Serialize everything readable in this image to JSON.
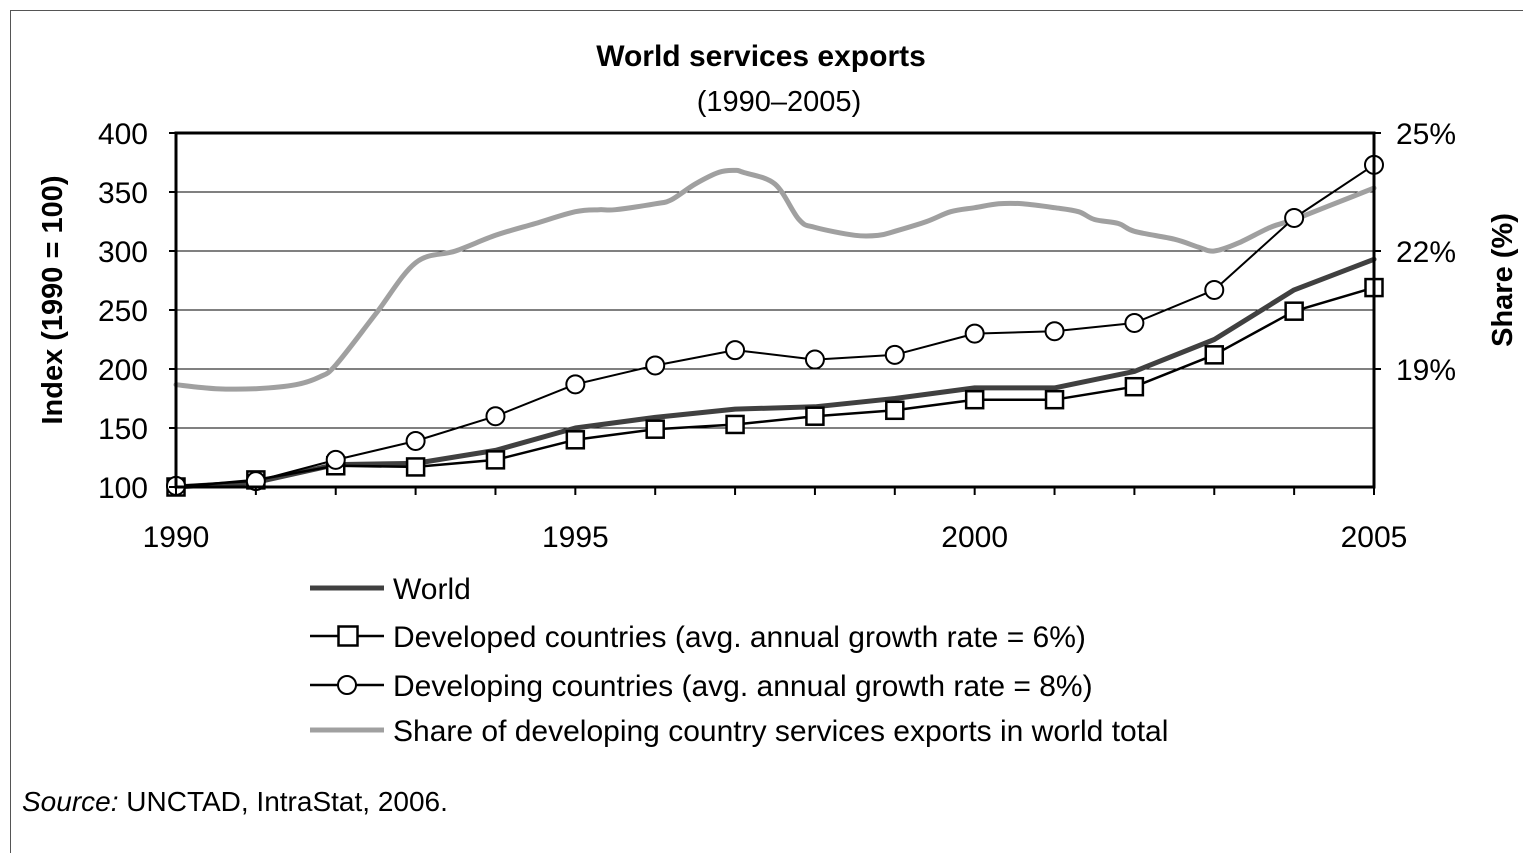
{
  "chart_data": {
    "type": "line",
    "title": "World services exports",
    "subtitle": "(1990–2005)",
    "ylabel": "Index (1990 = 100)",
    "y2label": "Share (%)",
    "xlim": [
      1990,
      2005
    ],
    "ylim": [
      100,
      400
    ],
    "y2lim": [
      16,
      25
    ],
    "x_ticks": [
      1990,
      1995,
      2000,
      2005
    ],
    "y_ticks": [
      100,
      150,
      200,
      250,
      300,
      350,
      400
    ],
    "y2_ticks": [
      {
        "value": 19,
        "label": "19%"
      },
      {
        "value": 22,
        "label": "22%"
      },
      {
        "value": 25,
        "label": "25%"
      }
    ],
    "grid": true,
    "legend_position": "bottom",
    "series": [
      {
        "name": "World",
        "axis": "left",
        "color": "#404040",
        "x": [
          1990,
          1991,
          1992,
          1993,
          1994,
          1995,
          1996,
          1997,
          1998,
          1999,
          2000,
          2001,
          2002,
          2003,
          2004,
          2005
        ],
        "values": [
          100,
          104,
          119,
          120,
          131,
          150,
          159,
          166,
          168,
          175,
          184,
          184,
          198,
          225,
          267,
          293
        ]
      },
      {
        "name": "Developed countries (avg. annual growth rate = 6%)",
        "axis": "left",
        "color": "#000000",
        "marker": "square",
        "x": [
          1990,
          1991,
          1992,
          1993,
          1994,
          1995,
          1996,
          1997,
          1998,
          1999,
          2000,
          2001,
          2002,
          2003,
          2004,
          2005
        ],
        "values": [
          100,
          106,
          118,
          117,
          123,
          140,
          149,
          153,
          160,
          165,
          174,
          174,
          185,
          212,
          249,
          269
        ]
      },
      {
        "name": "Developing countries (avg. annual growth rate = 8%)",
        "axis": "left",
        "color": "#000000",
        "marker": "circle",
        "x": [
          1990,
          1991,
          1992,
          1993,
          1994,
          1995,
          1996,
          1997,
          1998,
          1999,
          2000,
          2001,
          2002,
          2003,
          2004,
          2005
        ],
        "values": [
          101,
          105,
          123,
          139,
          160,
          187,
          203,
          216,
          208,
          212,
          230,
          232,
          239,
          267,
          328,
          373
        ]
      },
      {
        "name": "Share of developing country services exports in world total",
        "axis": "right",
        "color": "#a0a0a0",
        "x": [
          1990,
          1990.5,
          1991,
          1991.5,
          1991.8,
          1992,
          1992.5,
          1993,
          1993.5,
          1994,
          1994.5,
          1995,
          1995.3,
          1995.5,
          1996,
          1996.2,
          1996.5,
          1996.8,
          1997,
          1997.1,
          1997.5,
          1997.8,
          1998,
          1998.5,
          1998.8,
          1999,
          1999.4,
          1999.7,
          2000,
          2000.3,
          2000.6,
          2001,
          2001.3,
          2001.5,
          2001.8,
          2002,
          2002.5,
          2002.8,
          2003,
          2003.3,
          2003.7,
          2004,
          2004.5,
          2005
        ],
        "values": [
          18.6,
          18.5,
          18.5,
          18.6,
          18.8,
          19.1,
          20.4,
          21.7,
          22.0,
          22.4,
          22.7,
          23.0,
          23.05,
          23.05,
          23.2,
          23.3,
          23.7,
          24.0,
          24.05,
          24.0,
          23.7,
          22.8,
          22.6,
          22.4,
          22.4,
          22.5,
          22.75,
          23.0,
          23.1,
          23.2,
          23.2,
          23.1,
          23.0,
          22.8,
          22.7,
          22.5,
          22.3,
          22.1,
          22.0,
          22.2,
          22.6,
          22.8,
          23.2,
          23.6
        ]
      }
    ]
  },
  "source": {
    "prefix": "Source:",
    "text": " UNCTAD, IntraStat, 2006."
  }
}
